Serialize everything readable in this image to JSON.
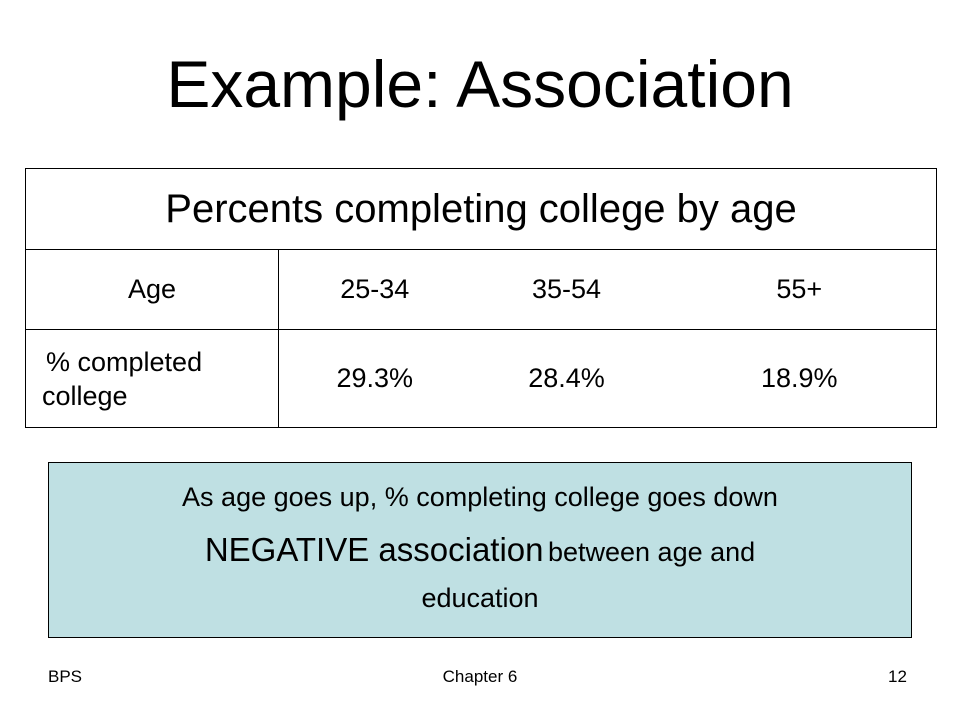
{
  "slide": {
    "title": "Example: Association"
  },
  "table": {
    "caption": "Percents completing college by age",
    "header_row": {
      "label": "Age",
      "groups": [
        "25-34",
        "35-54",
        "55+"
      ]
    },
    "value_row": {
      "label_line_1": "% completed",
      "label_line_2": "college",
      "values": [
        "29.3%",
        "28.4%",
        "18.9%"
      ]
    }
  },
  "summary": {
    "line_1": "As age goes up, % completing college goes down",
    "line_2_big": "NEGATIVE association",
    "line_2_small": "between age and",
    "line_3": "education"
  },
  "footer": {
    "left": "BPS",
    "center": "Chapter 6",
    "right": "12"
  },
  "colors": {
    "summary_background": "#bfe0e3",
    "border": "#000000"
  }
}
